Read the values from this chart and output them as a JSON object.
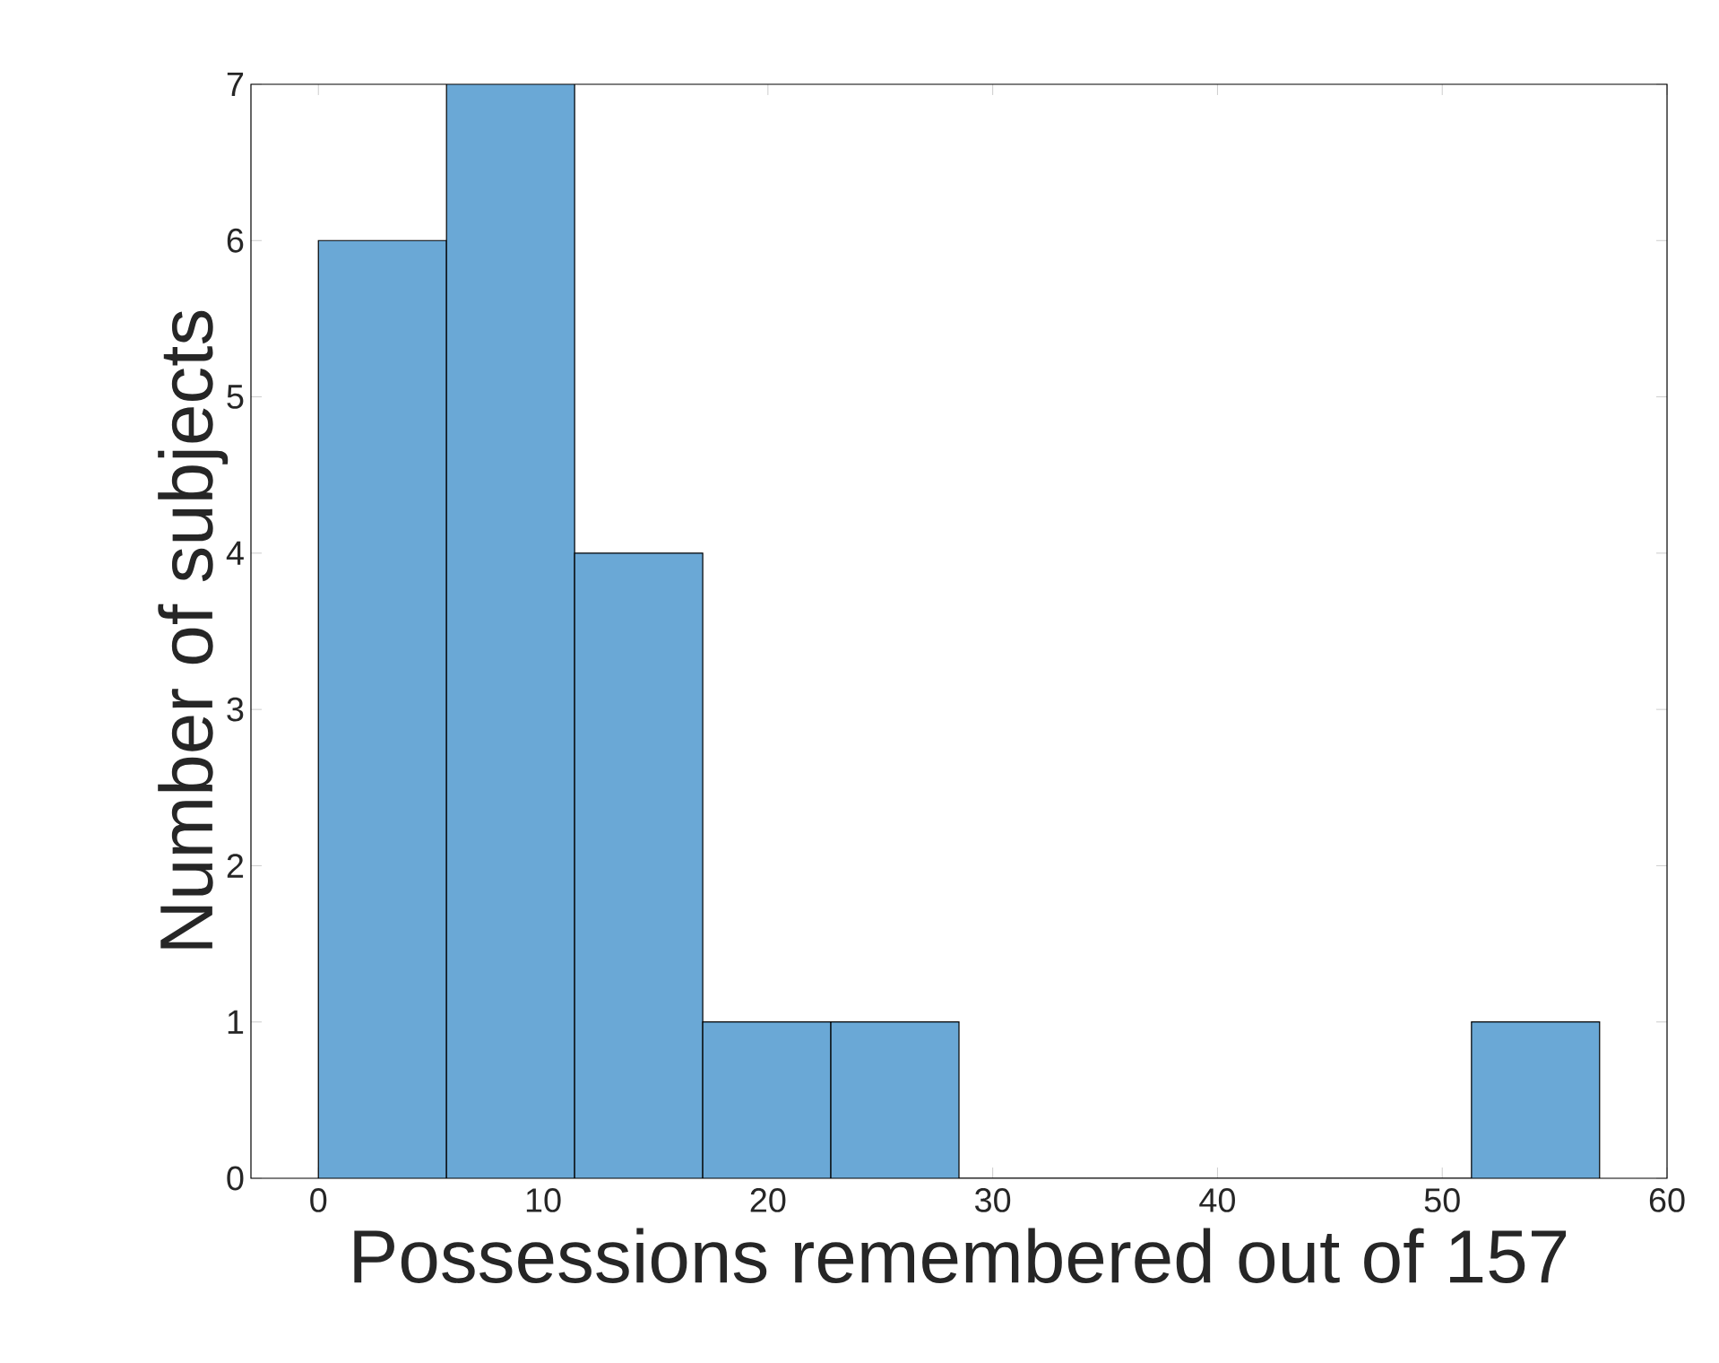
{
  "chart_data": {
    "type": "histogram",
    "xlabel": "Possessions remembered out of 157",
    "ylabel": "Number of subjects",
    "bins": [
      0,
      5.7,
      11.4,
      17.1,
      22.8,
      28.5,
      34.2,
      39.9,
      45.6,
      51.3,
      57
    ],
    "values": [
      6,
      7,
      4,
      1,
      1,
      0,
      0,
      0,
      0,
      1
    ],
    "color": "#6aa8d6",
    "xlim": [
      -3,
      60
    ],
    "ylim": [
      0,
      7
    ],
    "xticks": [
      0,
      10,
      20,
      30,
      40,
      50,
      60
    ],
    "yticks": [
      0,
      1,
      2,
      3,
      4,
      5,
      6,
      7
    ]
  }
}
